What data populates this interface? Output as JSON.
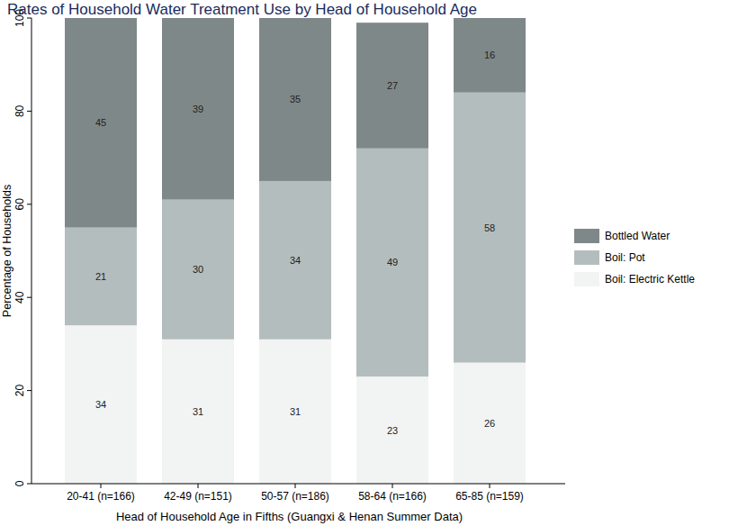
{
  "chart_data": {
    "type": "bar",
    "title": "Rates of Household Water Treatment Use by Head of Household Age",
    "x_label": "Head of Household Age in Fifths (Guangxi & Henan Summer Data)",
    "y_label": "Percentage of Households",
    "categories": [
      "20-41 (n=166)",
      "42-49 (n=151)",
      "50-57 (n=186)",
      "58-64 (n=166)",
      "65-85 (n=159)"
    ],
    "series": [
      {
        "name": "Boil: Electric Kettle",
        "color": "#f2f4f4",
        "values": [
          34,
          31,
          31,
          23,
          26
        ]
      },
      {
        "name": "Boil: Pot",
        "color": "#b4bdbd",
        "values": [
          21,
          30,
          34,
          49,
          58
        ]
      },
      {
        "name": "Bottled Water",
        "color": "#7f8888",
        "values": [
          45,
          39,
          35,
          27,
          16
        ]
      }
    ],
    "ylim": [
      0,
      100
    ],
    "yticks": [
      0,
      20,
      40,
      60,
      80,
      100
    ],
    "stacked": true,
    "data_labels": true,
    "legend": "right",
    "grid": false
  }
}
